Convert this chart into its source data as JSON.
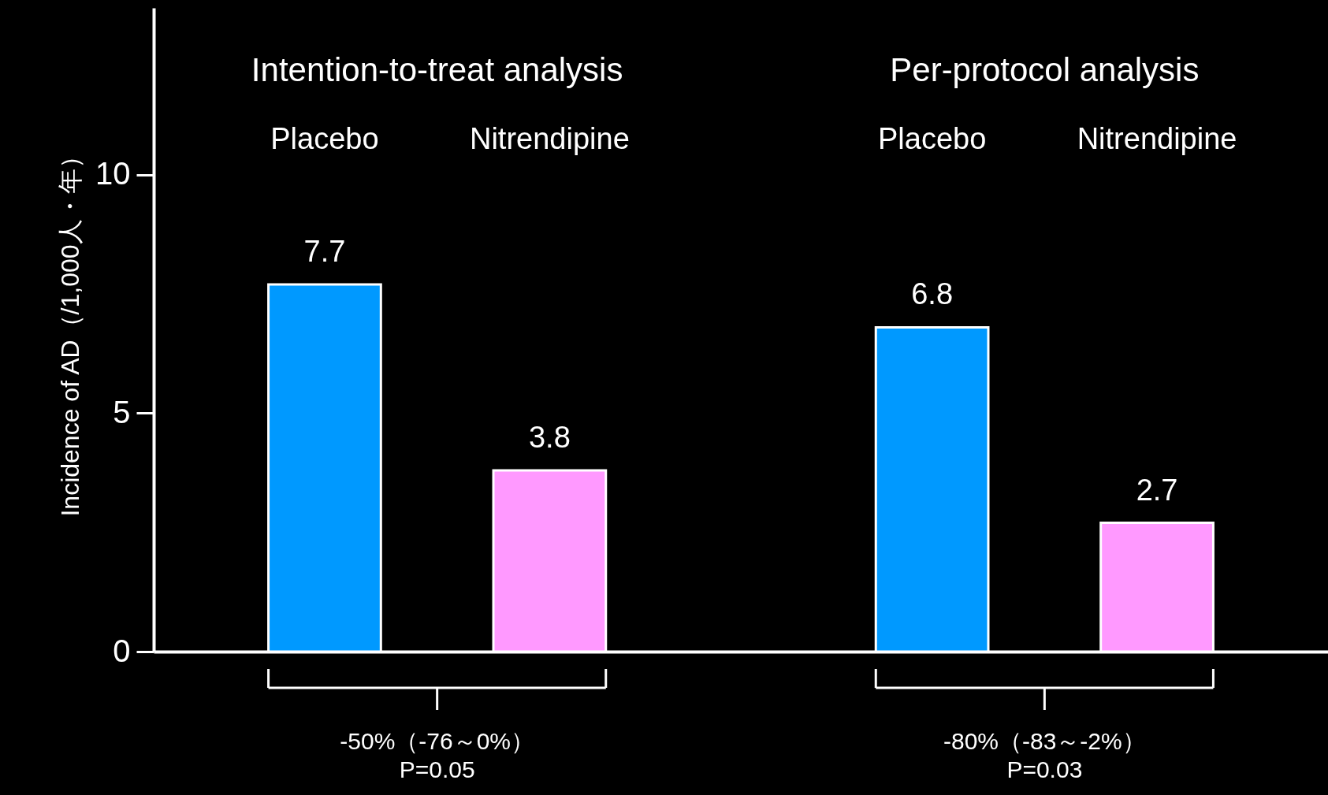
{
  "chart_data": {
    "type": "bar",
    "ylabel": "Incidence of AD（/1,000人・年）",
    "categories": [
      "Placebo",
      "Nitrendipine",
      "Placebo",
      "Nitrendipine"
    ],
    "values": [
      7.7,
      3.8,
      6.8,
      2.7
    ],
    "colors": [
      "#0099ff",
      "#ff99ff",
      "#0099ff",
      "#ff99ff"
    ],
    "ylim": [
      0,
      13.5
    ],
    "yticks": [
      0,
      5,
      10
    ],
    "data_labels": true,
    "annotations": [
      "Intention-to-treat analysis",
      "Per-protocol analysis",
      "-50%（-76～0%）\nP=0.05",
      "-80%（-83～-2%）\nP=0.03"
    ]
  }
}
